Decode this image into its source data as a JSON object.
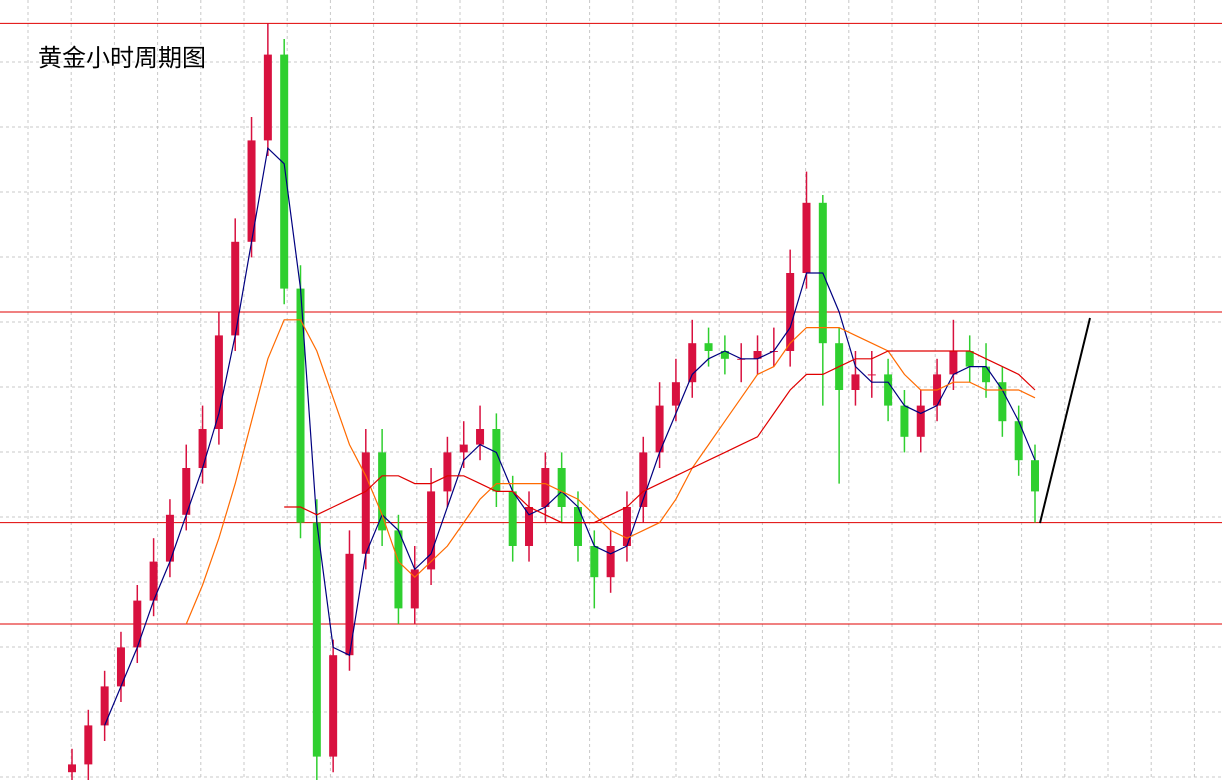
{
  "chart_data": {
    "type": "candlestick",
    "title": "黄金小时周期图",
    "ylim": [
      0,
      100
    ],
    "up_color": "#d8113f",
    "down_color": "#2fcf2f",
    "open": [
      1,
      2,
      7,
      12,
      17,
      23,
      28,
      34,
      40,
      45,
      57,
      69,
      82,
      93,
      63,
      33,
      3,
      16,
      29,
      42,
      32,
      22,
      27,
      37,
      42,
      43,
      45,
      37,
      30,
      35,
      40,
      35,
      30,
      26,
      30,
      35,
      42,
      48,
      51,
      56,
      55,
      54,
      54,
      55,
      55,
      65,
      74,
      56,
      50,
      52,
      52,
      48,
      44,
      48,
      52,
      55,
      53,
      51,
      46,
      41
    ],
    "close": [
      2,
      7,
      12,
      17,
      23,
      28,
      34,
      40,
      45,
      57,
      69,
      82,
      93,
      63,
      33,
      3,
      16,
      29,
      42,
      32,
      22,
      27,
      37,
      42,
      43,
      45,
      37,
      30,
      35,
      40,
      35,
      30,
      26,
      30,
      35,
      42,
      48,
      51,
      56,
      55,
      54,
      54,
      55,
      55,
      65,
      74,
      56,
      50,
      52,
      52,
      48,
      44,
      48,
      52,
      55,
      53,
      51,
      46,
      41,
      37
    ],
    "high": [
      4,
      9,
      14,
      19,
      25,
      31,
      36,
      43,
      48,
      60,
      72,
      85,
      97,
      95,
      66,
      36,
      18,
      32,
      45,
      45,
      34,
      30,
      40,
      44,
      46,
      48,
      47,
      39,
      37,
      42,
      42,
      37,
      32,
      32,
      37,
      44,
      51,
      54,
      59,
      58,
      57,
      56,
      57,
      58,
      68,
      78,
      75,
      58,
      55,
      55,
      54,
      50,
      50,
      54,
      59,
      57,
      56,
      53,
      48,
      43
    ],
    "low": [
      0,
      0,
      5,
      10,
      15,
      21,
      26,
      32,
      38,
      43,
      55,
      67,
      80,
      61,
      31,
      0,
      1,
      14,
      27,
      30,
      20,
      20,
      25,
      35,
      40,
      41,
      35,
      28,
      28,
      33,
      33,
      28,
      22,
      24,
      28,
      33,
      40,
      46,
      49,
      53,
      52,
      51,
      52,
      53,
      53,
      63,
      48,
      38,
      48,
      49,
      46,
      42,
      42,
      46,
      50,
      51,
      49,
      44,
      39,
      33
    ],
    "series": [
      {
        "color": "#000080",
        "values": [
          null,
          null,
          7,
          12,
          17,
          23,
          28,
          34,
          40,
          47,
          57,
          69,
          81,
          79,
          63,
          33,
          17,
          16,
          29,
          34,
          32,
          27,
          29,
          35,
          41,
          43,
          42,
          37,
          34,
          35,
          37,
          35,
          30,
          29,
          30,
          36,
          42,
          47,
          52,
          54,
          55,
          54,
          54,
          55,
          58,
          65,
          65,
          60,
          53,
          51,
          51,
          48,
          47,
          48,
          52,
          53,
          53,
          50,
          46,
          41
        ]
      },
      {
        "color": "#ff6a00",
        "values": [
          null,
          null,
          null,
          null,
          null,
          null,
          null,
          20,
          25,
          31,
          38,
          46,
          54,
          59,
          59,
          55,
          49,
          43,
          39,
          34,
          28,
          26,
          28,
          30,
          33,
          36,
          38,
          38,
          38,
          38,
          37,
          36,
          34,
          32,
          31,
          32,
          33,
          36,
          40,
          43,
          46,
          49,
          52,
          53,
          56,
          58,
          58,
          58,
          57,
          56,
          55,
          52,
          50,
          50,
          51,
          51,
          50,
          50,
          50,
          49
        ]
      },
      {
        "color": "#e00000",
        "values": [
          null,
          null,
          null,
          null,
          null,
          null,
          null,
          null,
          null,
          null,
          null,
          null,
          null,
          35,
          35,
          34,
          35,
          36,
          37,
          39,
          39,
          38,
          38,
          39,
          39,
          38,
          37,
          37,
          35,
          34,
          33,
          33,
          33,
          34,
          35,
          37,
          38,
          39,
          40,
          41,
          42,
          43,
          44,
          47,
          50,
          52,
          52,
          53,
          54,
          54,
          55,
          55,
          55,
          55,
          55,
          55,
          54,
          53,
          52,
          50
        ]
      }
    ],
    "levels": [
      97,
      60,
      33,
      20
    ],
    "level_color": "#e00000"
  }
}
